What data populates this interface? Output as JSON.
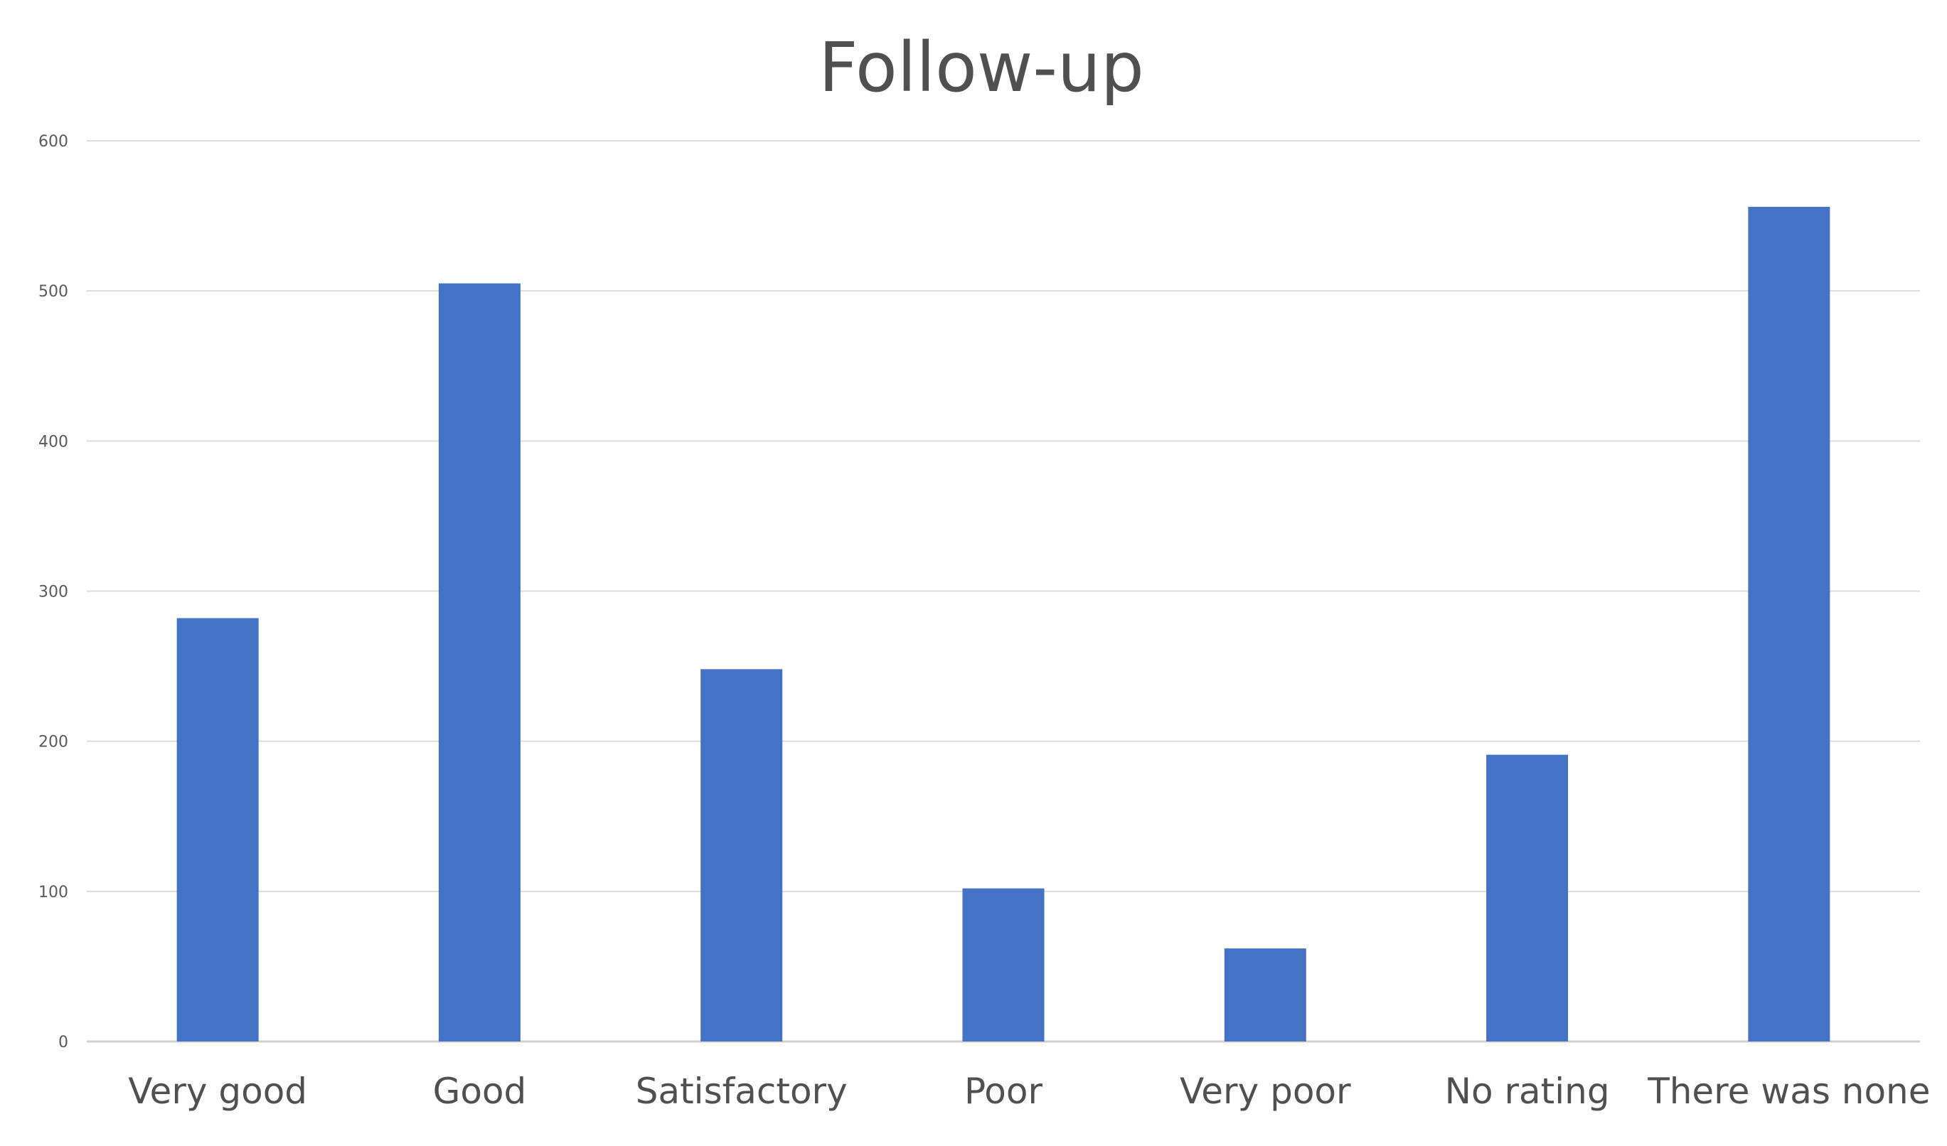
{
  "chart_data": {
    "type": "bar",
    "title": "Follow-up",
    "xlabel": "",
    "ylabel": "",
    "categories": [
      "Very good",
      "Good",
      "Satisfactory",
      "Poor",
      "Very poor",
      "No rating",
      "There was none"
    ],
    "series": [
      {
        "values": [
          282,
          505,
          248,
          102,
          62,
          191,
          556
        ]
      }
    ],
    "ylim": [
      0,
      600
    ],
    "yticks": [
      0,
      100,
      200,
      300,
      400,
      500,
      600
    ],
    "grid": true,
    "legend": "none",
    "colors": {
      "bar": "#4472C4",
      "grid": "#dcdcdc",
      "title": "#505050",
      "tick_text": "#5a5a5a"
    }
  }
}
